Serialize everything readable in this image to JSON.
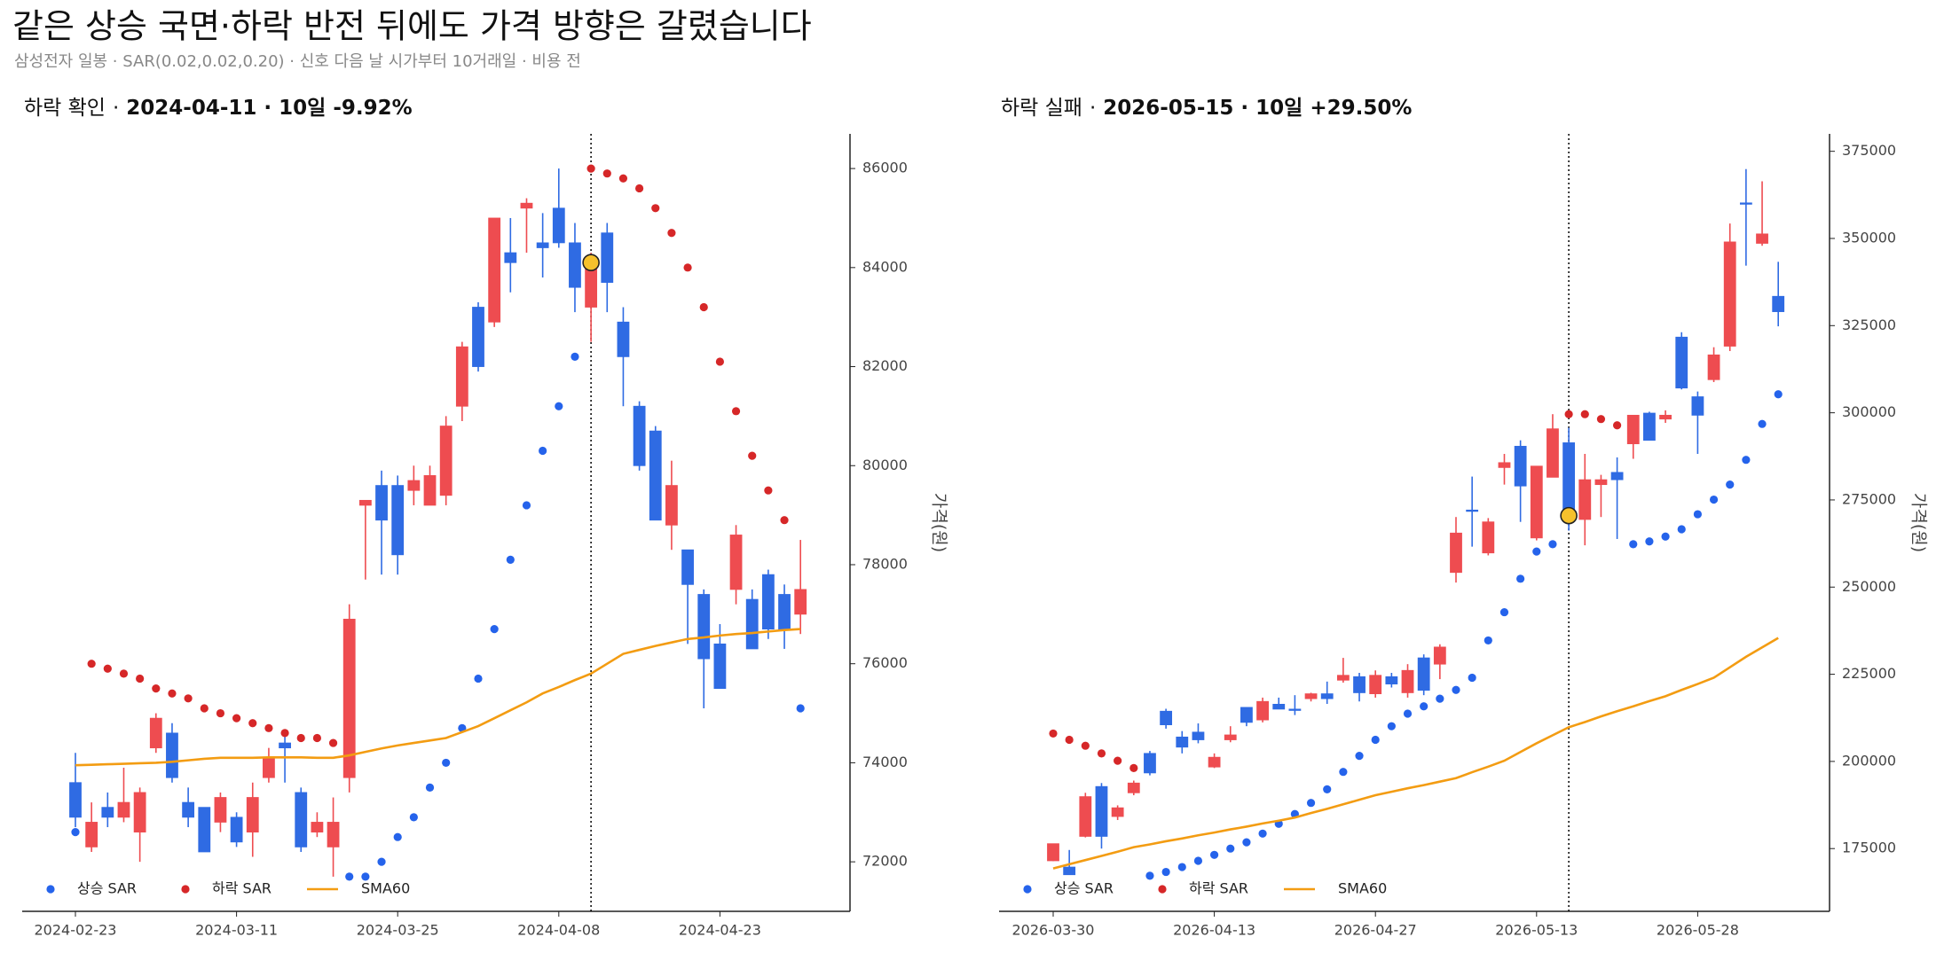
{
  "title": "같은 상승 국면·하락 반전 뒤에도 가격 방향은 갈렸습니다",
  "subtitle": "삼성전자 일봉 · SAR(0.02,0.02,0.20) · 신호 다음 날 시가부터 10거래일 · 비용 전",
  "chart_data": [
    {
      "type": "candlestick",
      "title": "하락 확인",
      "separator": "·",
      "signal_date": "2024-04-11",
      "horizon": "10일",
      "return": "-9.92%",
      "ylabel": "가격(원)",
      "up_color": "#ee4c50",
      "down_color": "#2f6be3",
      "signal_color": "#f6c12c",
      "x": [
        "2024-02-23",
        "2024-02-26",
        "2024-02-27",
        "2024-02-28",
        "2024-02-29",
        "2024-03-04",
        "2024-03-05",
        "2024-03-06",
        "2024-03-07",
        "2024-03-08",
        "2024-03-11",
        "2024-03-12",
        "2024-03-13",
        "2024-03-14",
        "2024-03-15",
        "2024-03-18",
        "2024-03-19",
        "2024-03-20",
        "2024-03-21",
        "2024-03-22",
        "2024-03-25",
        "2024-03-26",
        "2024-03-27",
        "2024-03-28",
        "2024-03-29",
        "2024-04-01",
        "2024-04-02",
        "2024-04-03",
        "2024-04-04",
        "2024-04-05",
        "2024-04-08",
        "2024-04-09",
        "2024-04-11",
        "2024-04-12",
        "2024-04-15",
        "2024-04-16",
        "2024-04-17",
        "2024-04-18",
        "2024-04-19",
        "2024-04-22",
        "2024-04-23",
        "2024-04-24",
        "2024-04-25",
        "2024-04-26",
        "2024-04-29",
        "2024-04-30"
      ],
      "open": [
        73600,
        72300,
        73100,
        72900,
        72600,
        74300,
        74600,
        73200,
        73100,
        72800,
        72900,
        72600,
        73700,
        74400,
        73400,
        72600,
        72300,
        73700,
        79200,
        79600,
        79600,
        79500,
        79200,
        79400,
        81200,
        83200,
        82900,
        84300,
        85200,
        84500,
        85200,
        84500,
        83200,
        84700,
        82900,
        81200,
        80700,
        78800,
        78300,
        77400,
        76400,
        77500,
        77300,
        77800,
        77400,
        77000
      ],
      "high": [
        74200,
        73200,
        73400,
        73900,
        73500,
        75000,
        74800,
        73500,
        73100,
        73400,
        73000,
        73600,
        74300,
        74600,
        73500,
        73000,
        73300,
        77200,
        79300,
        79900,
        79800,
        80000,
        80000,
        81000,
        82500,
        83300,
        85000,
        85000,
        85400,
        85100,
        86000,
        84900,
        84300,
        84900,
        83200,
        81300,
        80800,
        80100,
        78300,
        77500,
        76800,
        78800,
        77500,
        77900,
        77600,
        78500
      ],
      "low": [
        72700,
        72200,
        72700,
        72800,
        72000,
        74200,
        73600,
        72700,
        72200,
        72600,
        72300,
        72100,
        73600,
        73600,
        72200,
        72500,
        71700,
        73400,
        77700,
        77800,
        77800,
        79200,
        79200,
        79200,
        80900,
        81900,
        82800,
        83500,
        84300,
        83800,
        84400,
        83100,
        82500,
        83100,
        81200,
        79900,
        78900,
        78300,
        76400,
        75100,
        75500,
        77200,
        76300,
        76500,
        76300,
        76600
      ],
      "close": [
        72900,
        72800,
        72900,
        73200,
        73400,
        74900,
        73700,
        72900,
        72200,
        73300,
        72400,
        73300,
        74100,
        74300,
        72300,
        72800,
        72800,
        76900,
        79300,
        78900,
        78200,
        79700,
        79800,
        80800,
        82400,
        82000,
        85000,
        84100,
        85300,
        84400,
        84500,
        83600,
        84100,
        83700,
        82200,
        80000,
        78900,
        79600,
        77600,
        76100,
        75500,
        78600,
        76300,
        76700,
        76700,
        77500
      ],
      "series": [
        {
          "name": "상승 SAR",
          "color": "#2563eb",
          "style": "dots",
          "values": [
            72600,
            null,
            null,
            null,
            null,
            null,
            null,
            null,
            null,
            null,
            null,
            null,
            null,
            null,
            null,
            null,
            null,
            71700,
            71700,
            72000,
            72500,
            72900,
            73500,
            74000,
            74700,
            75700,
            76700,
            78100,
            79200,
            80300,
            81200,
            82200,
            null,
            null,
            null,
            null,
            null,
            null,
            null,
            null,
            null,
            null,
            null,
            null,
            null,
            75100
          ]
        },
        {
          "name": "하락 SAR",
          "color": "#d62728",
          "style": "dots",
          "values": [
            null,
            76000,
            75900,
            75800,
            75700,
            75500,
            75400,
            75300,
            75100,
            75000,
            74900,
            74800,
            74700,
            74600,
            74500,
            74500,
            74400,
            null,
            null,
            null,
            null,
            null,
            null,
            null,
            null,
            null,
            null,
            null,
            null,
            null,
            null,
            null,
            86000,
            85900,
            85800,
            85600,
            85200,
            84700,
            84000,
            83200,
            82100,
            81100,
            80200,
            79500,
            78900,
            null
          ]
        },
        {
          "name": "SMA60",
          "color": "#f39c12",
          "style": "line",
          "values": [
            73950,
            73960,
            73970,
            73980,
            73990,
            74000,
            74020,
            74050,
            74080,
            74100,
            74100,
            74100,
            74110,
            74110,
            74110,
            74100,
            74100,
            74150,
            74220,
            74290,
            74350,
            74400,
            74450,
            74500,
            74620,
            74740,
            74900,
            75060,
            75220,
            75400,
            75530,
            75670,
            75800,
            76000,
            76200,
            76280,
            76360,
            76430,
            76500,
            76530,
            76570,
            76600,
            76620,
            76650,
            76680,
            76700
          ]
        }
      ],
      "xticks": [
        "2024-02-23",
        "2024-03-11",
        "2024-03-25",
        "2024-04-08",
        "2024-04-23"
      ],
      "ylim": [
        71000,
        86700
      ],
      "yticks": [
        72000,
        74000,
        76000,
        78000,
        80000,
        82000,
        84000,
        86000
      ]
    },
    {
      "type": "candlestick",
      "title": "하락 실패",
      "separator": "·",
      "signal_date": "2026-05-15",
      "horizon": "10일",
      "return": "+29.50%",
      "ylabel": "가격(원)",
      "up_color": "#ee4c50",
      "down_color": "#2f6be3",
      "signal_color": "#f6c12c",
      "x": [
        "2026-03-30",
        "2026-03-31",
        "2026-04-01",
        "2026-04-02",
        "2026-04-03",
        "2026-04-06",
        "2026-04-07",
        "2026-04-08",
        "2026-04-09",
        "2026-04-10",
        "2026-04-13",
        "2026-04-14",
        "2026-04-15",
        "2026-04-16",
        "2026-04-17",
        "2026-04-20",
        "2026-04-21",
        "2026-04-22",
        "2026-04-23",
        "2026-04-24",
        "2026-04-27",
        "2026-04-28",
        "2026-04-29",
        "2026-04-30",
        "2026-05-04",
        "2026-05-06",
        "2026-05-07",
        "2026-05-08",
        "2026-05-11",
        "2026-05-12",
        "2026-05-13",
        "2026-05-14",
        "2026-05-15",
        "2026-05-18",
        "2026-05-19",
        "2026-05-20",
        "2026-05-21",
        "2026-05-22",
        "2026-05-26",
        "2026-05-27",
        "2026-05-28",
        "2026-05-29",
        "2026-06-01",
        "2026-06-02",
        "2026-06-04",
        "2026-06-05"
      ],
      "open": [
        171500,
        169700,
        178500,
        192800,
        184200,
        191000,
        202300,
        214400,
        207000,
        208400,
        198400,
        206200,
        215500,
        211900,
        216400,
        215000,
        218000,
        219400,
        223300,
        224300,
        219400,
        224300,
        219700,
        229700,
        227900,
        254200,
        272100,
        259800,
        284300,
        290400,
        264100,
        281500,
        291400,
        269400,
        279400,
        282900,
        291100,
        299900,
        298200,
        321700,
        304600,
        309500,
        319100,
        360200,
        348600,
        333400
      ],
      "high": [
        176400,
        174600,
        191000,
        193800,
        187400,
        194500,
        203000,
        215100,
        208700,
        210900,
        202300,
        210100,
        215500,
        218300,
        218300,
        219000,
        219700,
        222900,
        229700,
        225400,
        226100,
        225400,
        227900,
        230700,
        233600,
        270100,
        281700,
        269800,
        288200,
        292100,
        284700,
        299600,
        295700,
        288200,
        282200,
        287200,
        299300,
        300300,
        300700,
        323100,
        306100,
        318800,
        354300,
        369900,
        366400,
        343300
      ],
      "low": [
        171400,
        167500,
        178200,
        175000,
        183200,
        190300,
        196000,
        209400,
        202300,
        205200,
        198100,
        205500,
        210100,
        211200,
        215000,
        213300,
        217200,
        216500,
        222600,
        217200,
        218300,
        221200,
        218300,
        219000,
        223600,
        251300,
        261600,
        259100,
        279400,
        268700,
        263400,
        281500,
        266200,
        262000,
        270100,
        263800,
        286800,
        292100,
        297100,
        306700,
        288200,
        308800,
        317700,
        342200,
        347900,
        324800
      ],
      "close": [
        176400,
        167500,
        189900,
        178500,
        186700,
        193800,
        196700,
        210500,
        204100,
        206200,
        201200,
        207600,
        211200,
        217200,
        215000,
        214800,
        219400,
        218000,
        224700,
        219700,
        224700,
        222200,
        226100,
        220400,
        232800,
        265500,
        272000,
        268700,
        285700,
        279000,
        284700,
        295400,
        270500,
        280800,
        280800,
        280800,
        299300,
        292100,
        299300,
        307100,
        299300,
        316600,
        349000,
        360000,
        351300,
        329000
      ],
      "series": [
        {
          "name": "상승 SAR",
          "color": "#2563eb",
          "style": "dots",
          "values": [
            null,
            null,
            null,
            null,
            null,
            null,
            167200,
            168300,
            169700,
            171500,
            173200,
            175000,
            176800,
            179300,
            182100,
            184900,
            188100,
            192000,
            197000,
            201600,
            206200,
            210100,
            213700,
            215800,
            218000,
            220500,
            224000,
            234700,
            242800,
            252400,
            260200,
            262300,
            null,
            null,
            null,
            null,
            262300,
            263100,
            264500,
            266600,
            270900,
            275100,
            279400,
            286500,
            296800,
            305300
          ]
        },
        {
          "name": "하락 SAR",
          "color": "#d62728",
          "style": "dots",
          "values": [
            208000,
            206200,
            204500,
            202300,
            200200,
            198100,
            null,
            null,
            null,
            null,
            null,
            null,
            null,
            null,
            null,
            null,
            null,
            null,
            null,
            null,
            null,
            null,
            null,
            null,
            null,
            null,
            null,
            null,
            null,
            null,
            null,
            null,
            299600,
            299600,
            298200,
            296400,
            null,
            null,
            null,
            null,
            null,
            null,
            null,
            null,
            null,
            null
          ]
        },
        {
          "name": "SMA60",
          "color": "#f39c12",
          "style": "line",
          "values": [
            169300,
            170500,
            171700,
            172900,
            174100,
            175400,
            176200,
            177100,
            177900,
            178800,
            179600,
            180500,
            181300,
            182200,
            183000,
            183900,
            185200,
            186400,
            187700,
            189000,
            190300,
            191300,
            192300,
            193200,
            194200,
            195200,
            196900,
            198500,
            200200,
            202700,
            205200,
            207500,
            209800,
            211300,
            212900,
            214400,
            215800,
            217300,
            218700,
            220500,
            222200,
            224000,
            227000,
            230000,
            232700,
            235400
          ]
        }
      ],
      "xticks": [
        "2026-03-30",
        "2026-04-13",
        "2026-04-27",
        "2026-05-13",
        "2026-05-28"
      ],
      "ylim": [
        157000,
        380000
      ],
      "yticks": [
        175000,
        200000,
        225000,
        250000,
        275000,
        300000,
        325000,
        350000,
        375000
      ]
    }
  ]
}
